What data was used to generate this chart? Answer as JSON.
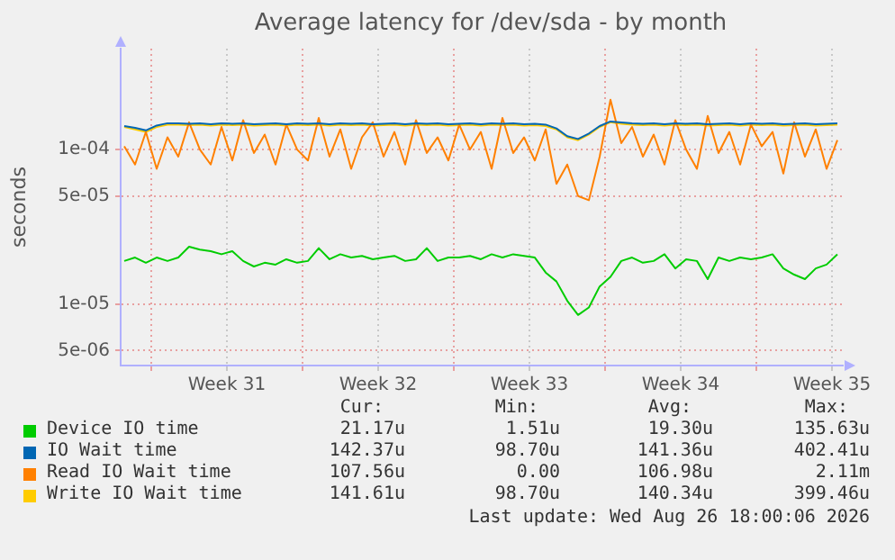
{
  "chart_data": {
    "type": "line",
    "title": "Average latency for /dev/sda - by month",
    "ylabel": "seconds",
    "log": "y",
    "grid": true,
    "legend": "bottom",
    "marker": "none",
    "x": [
      "2026-07-24T18:00",
      "2026-07-25T06:00",
      "2026-07-25T18:00",
      "2026-07-26T06:00",
      "2026-07-26T18:00",
      "2026-07-27T06:00",
      "2026-07-27T18:00",
      "2026-07-28T06:00",
      "2026-07-28T18:00",
      "2026-07-29T06:00",
      "2026-07-29T18:00",
      "2026-07-30T06:00",
      "2026-07-30T18:00",
      "2026-07-31T06:00",
      "2026-07-31T18:00",
      "2026-08-01T06:00",
      "2026-08-01T18:00",
      "2026-08-02T06:00",
      "2026-08-02T18:00",
      "2026-08-03T06:00",
      "2026-08-03T18:00",
      "2026-08-04T06:00",
      "2026-08-04T18:00",
      "2026-08-05T06:00",
      "2026-08-05T18:00",
      "2026-08-06T06:00",
      "2026-08-06T18:00",
      "2026-08-07T06:00",
      "2026-08-07T18:00",
      "2026-08-08T06:00",
      "2026-08-08T18:00",
      "2026-08-09T06:00",
      "2026-08-09T18:00",
      "2026-08-10T06:00",
      "2026-08-10T18:00",
      "2026-08-11T06:00",
      "2026-08-11T18:00",
      "2026-08-12T06:00",
      "2026-08-12T18:00",
      "2026-08-13T06:00",
      "2026-08-13T18:00",
      "2026-08-14T06:00",
      "2026-08-14T18:00",
      "2026-08-15T06:00",
      "2026-08-15T18:00",
      "2026-08-16T06:00",
      "2026-08-16T18:00",
      "2026-08-17T06:00",
      "2026-08-17T18:00",
      "2026-08-18T06:00",
      "2026-08-18T18:00",
      "2026-08-19T06:00",
      "2026-08-19T18:00",
      "2026-08-20T06:00",
      "2026-08-20T18:00",
      "2026-08-21T06:00",
      "2026-08-21T18:00",
      "2026-08-22T06:00",
      "2026-08-22T18:00",
      "2026-08-23T06:00",
      "2026-08-23T18:00",
      "2026-08-24T06:00",
      "2026-08-24T18:00",
      "2026-08-25T06:00",
      "2026-08-25T18:00",
      "2026-08-26T06:00",
      "2026-08-26T18:00"
    ],
    "xlim": [
      "2026-07-24T14:00",
      "2026-08-27T00:00"
    ],
    "xticks": [
      {
        "value": "2026-07-26T00:00",
        "label": null
      },
      {
        "value": "2026-07-29T12:00",
        "label": "Week 31"
      },
      {
        "value": "2026-08-02T00:00",
        "label": null
      },
      {
        "value": "2026-08-05T12:00",
        "label": "Week 32"
      },
      {
        "value": "2026-08-09T00:00",
        "label": null
      },
      {
        "value": "2026-08-12T12:00",
        "label": "Week 33"
      },
      {
        "value": "2026-08-16T00:00",
        "label": null
      },
      {
        "value": "2026-08-19T12:00",
        "label": "Week 34"
      },
      {
        "value": "2026-08-23T00:00",
        "label": null
      },
      {
        "value": "2026-08-26T12:00",
        "label": "Week 35"
      }
    ],
    "ylim": [
      4e-06,
      0.00045
    ],
    "yticks": [
      {
        "value": 5e-06,
        "label": "5e-06"
      },
      {
        "value": 1e-05,
        "label": "1e-05"
      },
      {
        "value": 5e-05,
        "label": "5e-05"
      },
      {
        "value": 0.0001,
        "label": "1e-04"
      }
    ],
    "series": [
      {
        "name": "Device IO time",
        "color": "#00cc00",
        "values": [
          1.9e-05,
          2e-05,
          1.85e-05,
          2e-05,
          1.9e-05,
          2e-05,
          2.35e-05,
          2.25e-05,
          2.2e-05,
          2.1e-05,
          2.2e-05,
          1.9e-05,
          1.75e-05,
          1.85e-05,
          1.8e-05,
          1.95e-05,
          1.85e-05,
          1.9e-05,
          2.3e-05,
          1.95e-05,
          2.1e-05,
          2e-05,
          2.05e-05,
          1.95e-05,
          2e-05,
          2.05e-05,
          1.9e-05,
          1.95e-05,
          2.3e-05,
          1.9e-05,
          2e-05,
          2e-05,
          2.05e-05,
          1.95e-05,
          2.1e-05,
          2e-05,
          2.1e-05,
          2.05e-05,
          2e-05,
          1.6e-05,
          1.4e-05,
          1.05e-05,
          8.5e-06,
          9.5e-06,
          1.3e-05,
          1.5e-05,
          1.9e-05,
          2e-05,
          1.85e-05,
          1.9e-05,
          2.1e-05,
          1.7e-05,
          1.95e-05,
          1.9e-05,
          1.45e-05,
          2e-05,
          1.9e-05,
          2e-05,
          1.95e-05,
          2e-05,
          2.1e-05,
          1.7e-05,
          1.55e-05,
          1.45e-05,
          1.7e-05,
          1.8e-05,
          2.1e-05
        ]
      },
      {
        "name": "IO Wait time",
        "color": "#0066b3",
        "values": [
          0.000142,
          0.000138,
          0.000133,
          0.000143,
          0.000148,
          0.000148,
          0.000147,
          0.000148,
          0.000146,
          0.000148,
          0.000147,
          0.000148,
          0.000146,
          0.000147,
          0.000148,
          0.000146,
          0.000148,
          0.000147,
          0.000148,
          0.000146,
          0.000148,
          0.000147,
          0.000148,
          0.000146,
          0.000147,
          0.000148,
          0.000146,
          0.000148,
          0.000147,
          0.000148,
          0.000146,
          0.000147,
          0.000148,
          0.000146,
          0.000148,
          0.000147,
          0.000148,
          0.000146,
          0.000147,
          0.000145,
          0.000137,
          0.000122,
          0.000117,
          0.000127,
          0.000142,
          0.000152,
          0.00015,
          0.000148,
          0.000147,
          0.000148,
          0.000146,
          0.000148,
          0.000147,
          0.000148,
          0.000146,
          0.000147,
          0.000148,
          0.000146,
          0.000148,
          0.000147,
          0.000148,
          0.000146,
          0.000147,
          0.000148,
          0.000146,
          0.000147,
          0.000148
        ]
      },
      {
        "name": "Read IO Wait time",
        "color": "#ff8000",
        "values": [
          0.000105,
          8e-05,
          0.00013,
          7.5e-05,
          0.00012,
          9e-05,
          0.00015,
          0.0001,
          8e-05,
          0.00014,
          8.5e-05,
          0.000155,
          9.5e-05,
          0.000125,
          8e-05,
          0.000145,
          0.0001,
          8.5e-05,
          0.00016,
          9e-05,
          0.000135,
          7.5e-05,
          0.00012,
          0.00015,
          9e-05,
          0.00013,
          8e-05,
          0.000155,
          9.5e-05,
          0.00012,
          8.5e-05,
          0.000145,
          0.0001,
          0.00013,
          7.5e-05,
          0.00016,
          9.5e-05,
          0.00012,
          8.5e-05,
          0.000135,
          6e-05,
          8e-05,
          5e-05,
          4.7e-05,
          9e-05,
          0.00021,
          0.00011,
          0.00014,
          9e-05,
          0.000125,
          8e-05,
          0.000155,
          0.0001,
          7.5e-05,
          0.000165,
          9.5e-05,
          0.00013,
          8e-05,
          0.000145,
          0.000105,
          0.00013,
          7e-05,
          0.00015,
          9e-05,
          0.000135,
          7.5e-05,
          0.000115
        ]
      },
      {
        "name": "Write IO Wait time",
        "color": "#ffcc00",
        "values": [
          0.00014,
          0.000135,
          0.00013,
          0.00014,
          0.000145,
          0.000145,
          0.000144,
          0.000145,
          0.000143,
          0.000145,
          0.000144,
          0.000145,
          0.000143,
          0.000144,
          0.000145,
          0.000143,
          0.000145,
          0.000144,
          0.000145,
          0.000143,
          0.000145,
          0.000144,
          0.000145,
          0.000143,
          0.000144,
          0.000145,
          0.000143,
          0.000145,
          0.000144,
          0.000145,
          0.000143,
          0.000144,
          0.000145,
          0.000143,
          0.000145,
          0.000144,
          0.000145,
          0.000143,
          0.000144,
          0.000142,
          0.000135,
          0.00012,
          0.000115,
          0.000125,
          0.00014,
          0.00015,
          0.000147,
          0.000145,
          0.000144,
          0.000145,
          0.000143,
          0.000145,
          0.000144,
          0.000145,
          0.000143,
          0.000144,
          0.000145,
          0.000143,
          0.000145,
          0.000144,
          0.000145,
          0.000143,
          0.000144,
          0.000145,
          0.000143,
          0.000144,
          0.000145
        ]
      }
    ],
    "annotations": [
      "Cur:",
      "Min:",
      "Avg:",
      "Max:",
      "21.17u",
      "1.51u",
      "19.30u",
      "135.63u",
      "142.37u",
      "98.70u",
      "141.36u",
      "402.41u",
      "107.56u",
      "0.00",
      "106.98u",
      "2.11m",
      "141.61u",
      "98.70u",
      "140.34u",
      "399.46u",
      "Last update: Wed Aug 26 18:00:06 2026"
    ]
  }
}
